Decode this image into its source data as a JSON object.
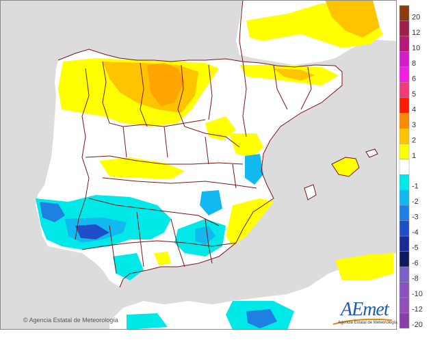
{
  "map": {
    "copyright": "© Agencia Estatal de Meteorología",
    "logo_text": "AEmet",
    "logo_subtitle": "Agencia Estatal de Meteorología"
  },
  "legend": {
    "items": [
      {
        "label": "20",
        "color": "#8a3b12"
      },
      {
        "label": "12",
        "color": "#a01f48"
      },
      {
        "label": "10",
        "color": "#b5197a"
      },
      {
        "label": "8",
        "color": "#d21ec8"
      },
      {
        "label": "6",
        "color": "#f41fe4"
      },
      {
        "label": "5",
        "color": "#f23a78"
      },
      {
        "label": "4",
        "color": "#ff1a00"
      },
      {
        "label": "3",
        "color": "#ff8a00"
      },
      {
        "label": "2",
        "color": "#ffc400"
      },
      {
        "label": "1",
        "color": "#ffff00"
      },
      {
        "label": "",
        "color": "#ffffff"
      },
      {
        "label": "-1",
        "color": "#00e8e8"
      },
      {
        "label": "-2",
        "color": "#12b8f0"
      },
      {
        "label": "-3",
        "color": "#1e80e0"
      },
      {
        "label": "-4",
        "color": "#1f4ec8"
      },
      {
        "label": "-5",
        "color": "#1a2a98"
      },
      {
        "label": "-6",
        "color": "#101860"
      },
      {
        "label": "-8",
        "color": "#7a62c4"
      },
      {
        "label": "-10",
        "color": "#8a52c0"
      },
      {
        "label": "-12",
        "color": "#9050b8"
      },
      {
        "label": "-20",
        "color": "#8a3ea8"
      }
    ]
  },
  "colors": {
    "sea": "#dcdcdc",
    "land": "#ffffff",
    "border": "#7a1414"
  }
}
